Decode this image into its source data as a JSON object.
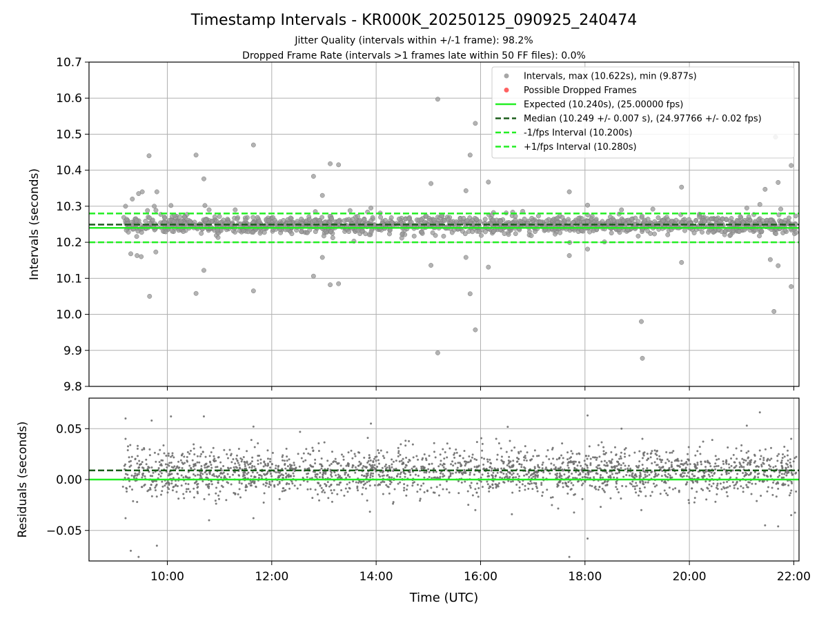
{
  "title": "Timestamp Intervals - KR000K_20250125_090925_240474",
  "subtitle_lines": [
    "Jitter Quality (intervals within +/-1 frame): 98.2%",
    "Dropped Frame Rate (intervals >1 frames late within 50 FF files): 0.0%"
  ],
  "colors": {
    "points": "#808080",
    "dropped": "#ff5050",
    "expected": "#22ee22",
    "median": "#1a5c1a",
    "bounds": "#22ee22",
    "grid": "#b0b0b0"
  },
  "chart_data": [
    {
      "type": "scatter",
      "ylabel": "Intervals (seconds)",
      "xlim": [
        8.5,
        22.1
      ],
      "ylim": [
        9.8,
        10.7
      ],
      "y_ticks": [
        9.8,
        9.9,
        10.0,
        10.1,
        10.2,
        10.3,
        10.4,
        10.5,
        10.6,
        10.7
      ],
      "y_tick_labels": [
        "9.8",
        "9.9",
        "10.0",
        "10.1",
        "10.2",
        "10.3",
        "10.4",
        "10.5",
        "10.6",
        "10.7"
      ],
      "x_ticks": [
        10,
        12,
        14,
        16,
        18,
        20,
        22
      ],
      "grid": true,
      "legend_position": "top-right",
      "legend": [
        {
          "label": "Intervals, max (10.622s), min (9.877s)",
          "kind": "point",
          "color": "#808080"
        },
        {
          "label": "Possible Dropped Frames",
          "kind": "point",
          "color": "#ff5050"
        },
        {
          "label": "Expected (10.240s), (25.00000 fps)",
          "kind": "solid",
          "color": "#22ee22"
        },
        {
          "label": "Median (10.249 +/- 0.007 s), (24.97766 +/- 0.02 fps)",
          "kind": "dashed",
          "color": "#1a5c1a"
        },
        {
          "label": "-1/fps Interval (10.200s)",
          "kind": "dashed",
          "color": "#22ee22"
        },
        {
          "label": "+1/fps Interval (10.280s)",
          "kind": "dashed",
          "color": "#22ee22"
        }
      ],
      "hlines": [
        {
          "name": "Expected",
          "y": 10.24,
          "style": "solid",
          "color": "#22ee22"
        },
        {
          "name": "Median",
          "y": 10.249,
          "style": "dashed",
          "color": "#1a5c1a"
        },
        {
          "name": "-1/fps Interval",
          "y": 10.2,
          "style": "dashed",
          "color": "#22ee22"
        },
        {
          "name": "+1/fps Interval",
          "y": 10.28,
          "style": "dashed",
          "color": "#22ee22"
        }
      ],
      "x_range_hours": [
        9.15,
        22.05
      ],
      "core_band": [
        10.225,
        10.272
      ],
      "outliers": [
        {
          "x": 9.2,
          "y": 10.3
        },
        {
          "x": 9.33,
          "y": 10.32
        },
        {
          "x": 9.3,
          "y": 10.168
        },
        {
          "x": 9.42,
          "y": 10.163
        },
        {
          "x": 9.5,
          "y": 10.16
        },
        {
          "x": 9.45,
          "y": 10.335
        },
        {
          "x": 9.52,
          "y": 10.34
        },
        {
          "x": 9.65,
          "y": 10.44
        },
        {
          "x": 9.66,
          "y": 10.05
        },
        {
          "x": 9.78,
          "y": 10.173
        },
        {
          "x": 9.8,
          "y": 10.34
        },
        {
          "x": 9.62,
          "y": 10.288
        },
        {
          "x": 9.75,
          "y": 10.3
        },
        {
          "x": 10.07,
          "y": 10.302
        },
        {
          "x": 10.55,
          "y": 10.442
        },
        {
          "x": 10.55,
          "y": 10.058
        },
        {
          "x": 10.7,
          "y": 10.376
        },
        {
          "x": 10.7,
          "y": 10.122
        },
        {
          "x": 10.72,
          "y": 10.302
        },
        {
          "x": 10.8,
          "y": 10.29
        },
        {
          "x": 11.65,
          "y": 10.47
        },
        {
          "x": 11.65,
          "y": 10.065
        },
        {
          "x": 12.8,
          "y": 10.383
        },
        {
          "x": 12.8,
          "y": 10.106
        },
        {
          "x": 12.97,
          "y": 10.33
        },
        {
          "x": 12.97,
          "y": 10.158
        },
        {
          "x": 13.12,
          "y": 10.418
        },
        {
          "x": 13.12,
          "y": 10.082
        },
        {
          "x": 13.28,
          "y": 10.415
        },
        {
          "x": 13.28,
          "y": 10.085
        },
        {
          "x": 15.05,
          "y": 10.363
        },
        {
          "x": 15.05,
          "y": 10.136
        },
        {
          "x": 15.18,
          "y": 10.597
        },
        {
          "x": 15.18,
          "y": 9.893
        },
        {
          "x": 15.72,
          "y": 10.343
        },
        {
          "x": 15.72,
          "y": 10.158
        },
        {
          "x": 15.8,
          "y": 10.442
        },
        {
          "x": 15.8,
          "y": 10.057
        },
        {
          "x": 15.9,
          "y": 10.53
        },
        {
          "x": 15.9,
          "y": 9.957
        },
        {
          "x": 16.15,
          "y": 10.367
        },
        {
          "x": 16.15,
          "y": 10.131
        },
        {
          "x": 17.7,
          "y": 10.34
        },
        {
          "x": 17.7,
          "y": 10.163
        },
        {
          "x": 18.05,
          "y": 10.303
        },
        {
          "x": 18.05,
          "y": 10.181
        },
        {
          "x": 19.08,
          "y": 9.98
        },
        {
          "x": 19.1,
          "y": 9.878
        },
        {
          "x": 19.85,
          "y": 10.353
        },
        {
          "x": 19.85,
          "y": 10.144
        },
        {
          "x": 21.45,
          "y": 10.347
        },
        {
          "x": 21.55,
          "y": 10.152
        },
        {
          "x": 21.62,
          "y": 10.008
        },
        {
          "x": 21.65,
          "y": 10.492
        },
        {
          "x": 21.7,
          "y": 10.366
        },
        {
          "x": 21.7,
          "y": 10.135
        },
        {
          "x": 21.75,
          "y": 10.292
        },
        {
          "x": 21.95,
          "y": 10.413
        },
        {
          "x": 21.95,
          "y": 10.077
        },
        {
          "x": 21.35,
          "y": 10.305
        },
        {
          "x": 21.1,
          "y": 10.295
        },
        {
          "x": 18.7,
          "y": 10.29
        },
        {
          "x": 19.3,
          "y": 10.292
        },
        {
          "x": 13.5,
          "y": 10.288
        },
        {
          "x": 13.9,
          "y": 10.295
        },
        {
          "x": 11.3,
          "y": 10.29
        }
      ]
    },
    {
      "type": "scatter",
      "xlabel": "Time (UTC)",
      "ylabel": "Residuals (seconds)",
      "xlim": [
        8.5,
        22.1
      ],
      "ylim": [
        -0.08,
        0.08
      ],
      "y_ticks": [
        -0.05,
        0.0,
        0.05
      ],
      "y_tick_labels": [
        "−0.05",
        "0.00",
        "0.05"
      ],
      "x_ticks": [
        10,
        12,
        14,
        16,
        18,
        20,
        22
      ],
      "x_tick_labels": [
        "10:00",
        "12:00",
        "14:00",
        "16:00",
        "18:00",
        "20:00",
        "22:00"
      ],
      "grid": true,
      "hlines": [
        {
          "name": "Expected",
          "y": 0.0,
          "style": "solid",
          "color": "#22ee22"
        },
        {
          "name": "Median",
          "y": 0.009,
          "style": "dashed",
          "color": "#1a5c1a"
        }
      ],
      "x_range_hours": [
        9.15,
        22.05
      ],
      "core_band": [
        -0.015,
        0.03
      ],
      "outliers": [
        {
          "x": 9.2,
          "y": 0.06
        },
        {
          "x": 9.2,
          "y": 0.04
        },
        {
          "x": 9.2,
          "y": -0.038
        },
        {
          "x": 9.3,
          "y": -0.07
        },
        {
          "x": 9.45,
          "y": -0.076
        },
        {
          "x": 9.8,
          "y": -0.065
        },
        {
          "x": 9.7,
          "y": 0.058
        },
        {
          "x": 10.07,
          "y": 0.062
        },
        {
          "x": 10.7,
          "y": 0.062
        },
        {
          "x": 10.8,
          "y": -0.04
        },
        {
          "x": 11.65,
          "y": 0.052
        },
        {
          "x": 11.65,
          "y": -0.038
        },
        {
          "x": 13.9,
          "y": 0.055
        },
        {
          "x": 15.9,
          "y": -0.03
        },
        {
          "x": 18.05,
          "y": 0.063
        },
        {
          "x": 18.05,
          "y": -0.058
        },
        {
          "x": 17.7,
          "y": -0.076
        },
        {
          "x": 19.1,
          "y": 0.04
        },
        {
          "x": 19.08,
          "y": -0.03
        },
        {
          "x": 21.35,
          "y": 0.066
        },
        {
          "x": 21.45,
          "y": -0.045
        },
        {
          "x": 21.7,
          "y": -0.046
        },
        {
          "x": 21.1,
          "y": 0.053
        },
        {
          "x": 21.95,
          "y": 0.04
        },
        {
          "x": 21.95,
          "y": -0.035
        },
        {
          "x": 18.7,
          "y": 0.05
        },
        {
          "x": 16.3,
          "y": 0.04
        }
      ]
    }
  ]
}
